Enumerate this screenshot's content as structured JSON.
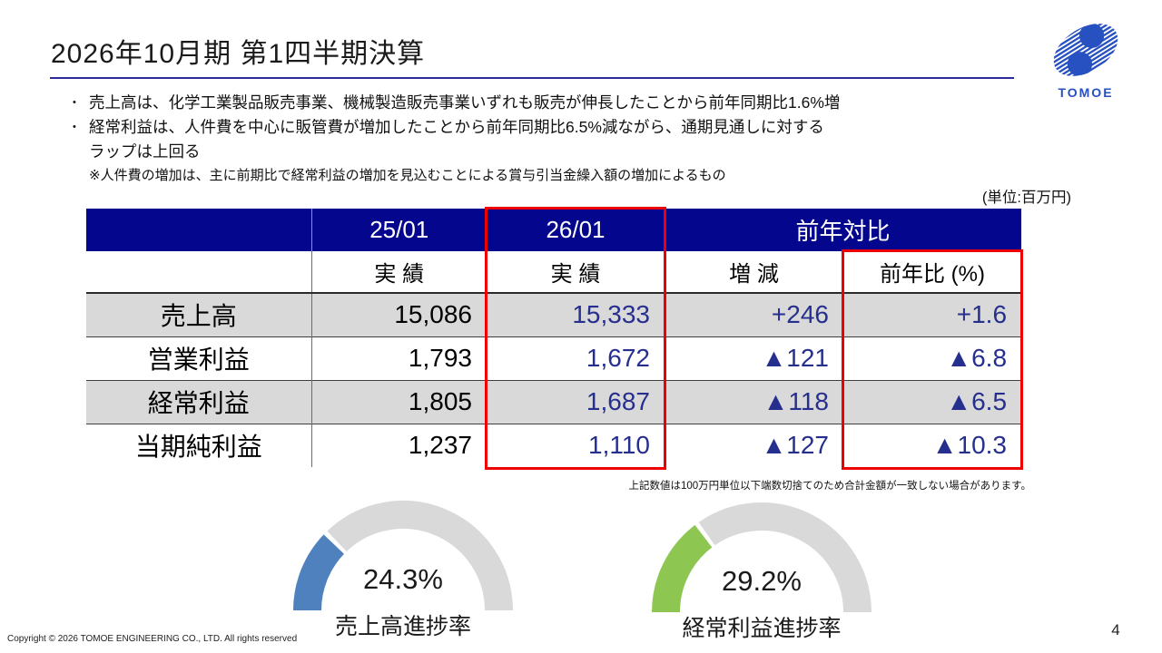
{
  "slide": {
    "title": "2026年10月期 第1四半期決算",
    "page_number": "4",
    "copyright": "Copyright © 2026 TOMOE ENGINEERING CO., LTD. All rights reserved"
  },
  "logo": {
    "brand": "TOMOE"
  },
  "summary": {
    "bullet_marker": "•",
    "bullet1": "売上高は、化学工業製品販売事業、機械製造販売事業いずれも販売が伸長したことから前年同期比1.6%増",
    "bullet2_line1": "経常利益は、人件費を中心に販管費が増加したことから前年同期比6.5%減ながら、通期見通しに対する",
    "bullet2_line2": "ラップは上回る",
    "note": "※人件費の増加は、主に前期比で経常利益の増加を見込むことによる賞与引当金繰入額の増加によるもの"
  },
  "table": {
    "unit_note": "(単位:百万円)",
    "footnote": "上記数値は100万円単位以下端数切捨てのため合計金額が一致しない場合があります。",
    "header_row1": {
      "prior": "25/01",
      "current": "26/01",
      "yoy_group": "前年対比"
    },
    "header_row2": {
      "prior": "実 績",
      "current": "実 績",
      "diff": "増 減",
      "pct": "前年比 (%)"
    },
    "rows": [
      {
        "label": "売上高",
        "prior": "15,086",
        "current": "15,333",
        "diff": "+246",
        "pct": "+1.6"
      },
      {
        "label": "営業利益",
        "prior": "1,793",
        "current": "1,672",
        "diff": "▲121",
        "pct": "▲6.8"
      },
      {
        "label": "経常利益",
        "prior": "1,805",
        "current": "1,687",
        "diff": "▲118",
        "pct": "▲6.5"
      },
      {
        "label": "当期純利益",
        "prior": "1,237",
        "current": "1,110",
        "diff": "▲127",
        "pct": "▲10.3"
      }
    ]
  },
  "colors": {
    "header_blue": "#04068E",
    "accent_navy": "#262F8E",
    "highlight_red": "#EE0000",
    "row_gray": "#D9D9D9",
    "rule_blue": "#2A2AA0",
    "logo_blue": "#2750C0",
    "gauge_track": "#D9D9D9"
  },
  "chart_data": [
    {
      "type": "gauge",
      "value": 24.3,
      "min": 0,
      "max": 100,
      "value_label": "24.3%",
      "label": "売上高進捗率",
      "color": "#4E81BD",
      "track_color": "#D9D9D9"
    },
    {
      "type": "gauge",
      "value": 29.2,
      "min": 0,
      "max": 100,
      "value_label": "29.2%",
      "label": "経常利益進捗率",
      "color": "#8DC751",
      "track_color": "#D9D9D9"
    }
  ]
}
